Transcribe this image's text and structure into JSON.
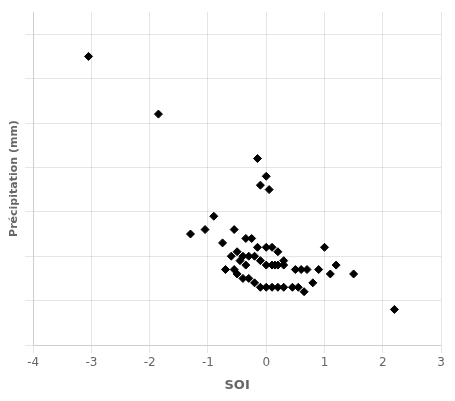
{
  "chart_data": {
    "type": "scatter",
    "x": [
      -3.05,
      -1.85,
      -0.15,
      0.0,
      -0.1,
      0.05,
      -0.9,
      -0.55,
      -0.35,
      -0.25,
      -0.15,
      0.0,
      0.1,
      0.2,
      -1.05,
      -0.75,
      -0.5,
      -0.4,
      -0.3,
      -0.2,
      -0.1,
      0.0,
      0.1,
      0.2,
      0.3,
      -1.3,
      -0.6,
      -0.45,
      -0.35,
      0.15,
      0.3,
      0.5,
      0.6,
      0.7,
      0.9,
      1.0,
      1.2,
      1.5,
      -0.7,
      -0.55,
      -0.5,
      -0.4,
      -0.3,
      -0.2,
      -0.1,
      0.0,
      0.1,
      0.2,
      0.3,
      0.45,
      0.55,
      0.65,
      0.8,
      1.1,
      2.2
    ],
    "values": [
      95,
      82,
      72,
      68,
      66,
      65,
      59,
      56,
      54,
      54,
      52,
      52,
      52,
      51,
      56,
      53,
      51,
      50,
      50,
      50,
      49,
      48,
      48,
      48,
      49,
      55,
      50,
      49,
      48,
      48,
      48,
      47,
      47,
      47,
      47,
      52,
      48,
      46,
      47,
      47,
      46,
      45,
      45,
      44,
      43,
      43,
      43,
      43,
      43,
      43,
      43,
      42,
      44,
      46,
      38
    ],
    "xlabel": "SOI",
    "ylabel": "Précipitation (mm)",
    "color": "#000000",
    "marker": "diamond",
    "xlim": [
      -4,
      3
    ],
    "ylim": [
      30,
      105
    ],
    "xticks": [
      -4,
      -3,
      -2,
      -1,
      0,
      1,
      2,
      3
    ],
    "yticks": [
      30,
      40,
      50,
      60,
      70,
      80,
      90,
      100
    ],
    "grid": true,
    "tick_labels": "x"
  }
}
